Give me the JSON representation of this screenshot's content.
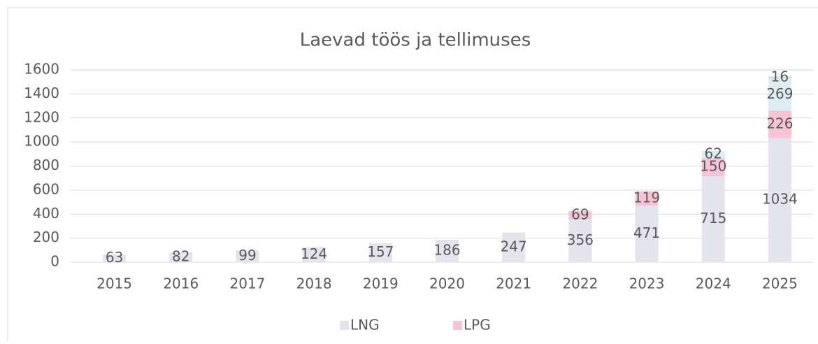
{
  "chart_data": {
    "type": "stacked_bar",
    "title": "Laevad töös ja tellimuses",
    "categories": [
      "2015",
      "2016",
      "2017",
      "2018",
      "2019",
      "2020",
      "2021",
      "2022",
      "2023",
      "2024",
      "2025"
    ],
    "series": [
      {
        "name": "LNG",
        "color": "#e4e4ec",
        "values": [
          63,
          82,
          99,
          124,
          157,
          186,
          247,
          356,
          471,
          715,
          1034
        ]
      },
      {
        "name": "LPG",
        "color": "#f7c3d6",
        "values": [
          null,
          null,
          null,
          null,
          null,
          null,
          null,
          69,
          119,
          150,
          226
        ]
      },
      {
        "color": "#dceef3",
        "values": [
          null,
          null,
          null,
          null,
          null,
          null,
          null,
          null,
          null,
          62,
          269
        ]
      },
      {
        "color": "#cfdde9",
        "values": [
          null,
          null,
          null,
          null,
          null,
          null,
          null,
          null,
          null,
          null,
          16
        ]
      }
    ],
    "ylim": [
      0,
      1600
    ],
    "yticks": [
      0,
      200,
      400,
      600,
      800,
      1000,
      1200,
      1400,
      1600
    ],
    "grid": true,
    "legend": "bottom"
  }
}
